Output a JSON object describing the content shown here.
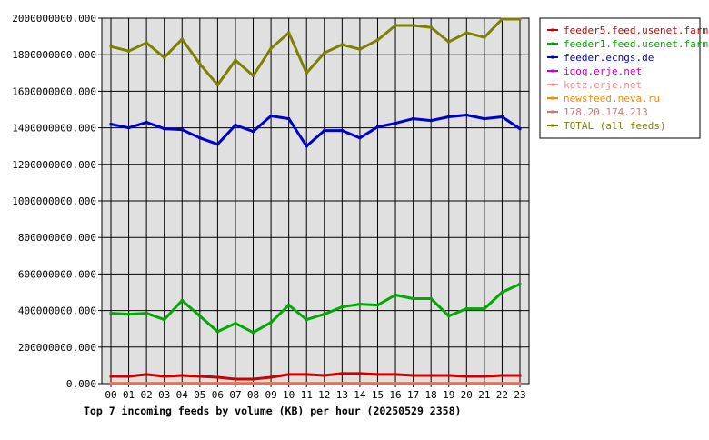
{
  "chart_data": {
    "type": "line",
    "title": "Top 7 incoming feeds by volume (KB) per hour (20250529 2358)",
    "xlabel": "",
    "ylabel": "",
    "categories": [
      "00",
      "01",
      "02",
      "03",
      "04",
      "05",
      "06",
      "07",
      "08",
      "09",
      "10",
      "11",
      "12",
      "13",
      "14",
      "15",
      "16",
      "17",
      "18",
      "19",
      "20",
      "21",
      "22",
      "23"
    ],
    "ylim": [
      0,
      2000000000
    ],
    "yticks": [
      "0.000",
      "200000000.000",
      "400000000.000",
      "600000000.000",
      "800000000.000",
      "1000000000.000",
      "1200000000.000",
      "1400000000.000",
      "1600000000.000",
      "1800000000.000",
      "2000000000.000"
    ],
    "grid": true,
    "legend_position": "top-right",
    "series": [
      {
        "name": "feeder5.feed.usenet.farm",
        "color": "#cc0000",
        "values": [
          40000000,
          40000000,
          50000000,
          40000000,
          45000000,
          40000000,
          35000000,
          25000000,
          25000000,
          35000000,
          50000000,
          50000000,
          45000000,
          55000000,
          55000000,
          50000000,
          50000000,
          45000000,
          45000000,
          45000000,
          40000000,
          40000000,
          45000000,
          45000000
        ]
      },
      {
        "name": "feeder1.feed.usenet.farm",
        "color": "#00aa00",
        "values": [
          385000000,
          380000000,
          385000000,
          350000000,
          455000000,
          370000000,
          285000000,
          330000000,
          280000000,
          335000000,
          430000000,
          350000000,
          380000000,
          420000000,
          435000000,
          430000000,
          485000000,
          465000000,
          465000000,
          370000000,
          410000000,
          410000000,
          500000000,
          545000000
        ]
      },
      {
        "name": "feeder.ecngs.de",
        "color": "#0000cc",
        "values": [
          1420000000,
          1400000000,
          1430000000,
          1395000000,
          1390000000,
          1345000000,
          1310000000,
          1415000000,
          1380000000,
          1465000000,
          1450000000,
          1300000000,
          1385000000,
          1385000000,
          1345000000,
          1405000000,
          1425000000,
          1450000000,
          1440000000,
          1460000000,
          1470000000,
          1450000000,
          1460000000,
          1395000000
        ]
      },
      {
        "name": "iqoq.erje.net",
        "color": "#cc00cc",
        "values": [
          0,
          0,
          0,
          0,
          0,
          0,
          0,
          0,
          0,
          0,
          0,
          0,
          0,
          0,
          0,
          0,
          0,
          0,
          0,
          0,
          0,
          0,
          0,
          0
        ]
      },
      {
        "name": "kotz.erje.net",
        "color": "#ff8888",
        "values": [
          2000000,
          2000000,
          2000000,
          2000000,
          2000000,
          2000000,
          2000000,
          2000000,
          2000000,
          2000000,
          2000000,
          2000000,
          2000000,
          2000000,
          2000000,
          2000000,
          2000000,
          2000000,
          2000000,
          2000000,
          2000000,
          2000000,
          2000000,
          2000000
        ]
      },
      {
        "name": "newsfeed.neva.ru",
        "color": "#ff8800",
        "values": [
          1000000,
          1000000,
          1000000,
          1000000,
          1000000,
          1000000,
          1000000,
          1000000,
          1000000,
          1000000,
          1000000,
          1000000,
          1000000,
          1000000,
          1000000,
          1000000,
          1000000,
          1000000,
          1000000,
          1000000,
          1000000,
          1000000,
          1000000,
          1000000
        ]
      },
      {
        "name": "178.20.174.213",
        "color": "#cc7777",
        "values": [
          0,
          0,
          0,
          0,
          0,
          0,
          0,
          0,
          0,
          0,
          0,
          0,
          0,
          0,
          0,
          0,
          0,
          0,
          0,
          0,
          0,
          0,
          0,
          0
        ]
      },
      {
        "name": "TOTAL (all feeds)",
        "color": "#808000",
        "values": [
          1845000000,
          1820000000,
          1865000000,
          1785000000,
          1885000000,
          1750000000,
          1635000000,
          1770000000,
          1685000000,
          1835000000,
          1920000000,
          1700000000,
          1810000000,
          1855000000,
          1830000000,
          1880000000,
          1960000000,
          1960000000,
          1950000000,
          1870000000,
          1920000000,
          1895000000,
          1995000000,
          1995000000
        ]
      }
    ]
  }
}
